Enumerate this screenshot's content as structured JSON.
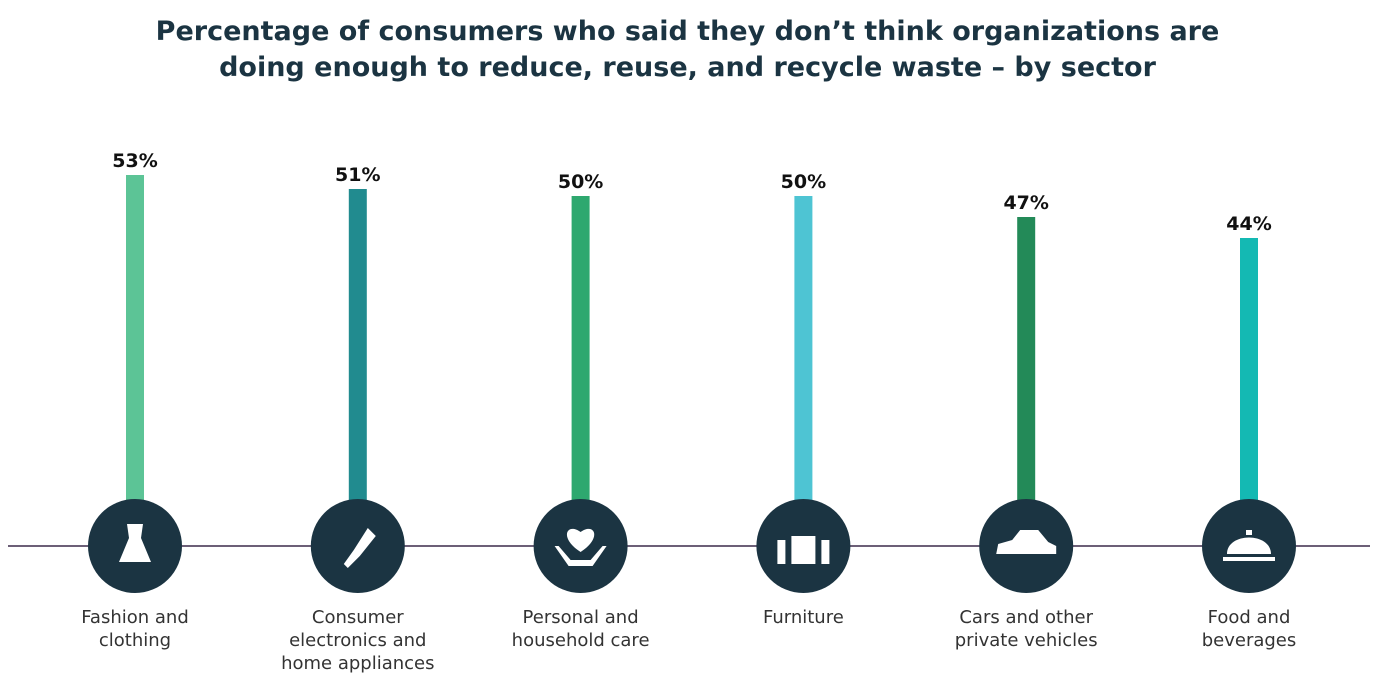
{
  "chart_data": {
    "type": "bar",
    "title": "Percentage of consumers who said they don’t think organizations are doing enough to reduce, reuse, and recycle waste – by sector",
    "categories": [
      "Fashion and clothing",
      "Consumer electronics and home appliances",
      "Personal and household care",
      "Furniture",
      "Cars and other private vehicles",
      "Food and beverages"
    ],
    "values": [
      53,
      51,
      50,
      50,
      47,
      44
    ],
    "value_labels": [
      "53%",
      "51%",
      "50%",
      "50%",
      "47%",
      "44%"
    ],
    "colors": [
      "#5cc496",
      "#218b8f",
      "#2ea86f",
      "#4ec4d3",
      "#238a58",
      "#14b9b3"
    ],
    "ylim": [
      0,
      53
    ]
  }
}
